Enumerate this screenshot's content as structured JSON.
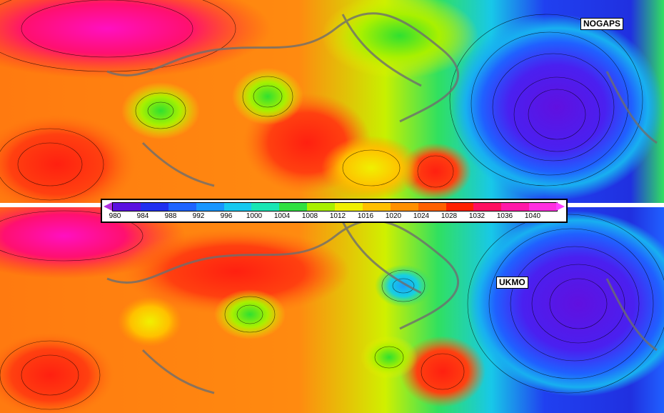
{
  "models": {
    "top": "NOGAPS",
    "bottom": "UKMO"
  },
  "colorbar": {
    "ticks": [
      "980",
      "984",
      "988",
      "992",
      "996",
      "1000",
      "1004",
      "1008",
      "1012",
      "1016",
      "1020",
      "1024",
      "1028",
      "1032",
      "1036",
      "1040"
    ],
    "colors": [
      "#5a10e0",
      "#2030f0",
      "#1e64ff",
      "#1896ff",
      "#16c8f0",
      "#18e6b4",
      "#30e040",
      "#a8f000",
      "#f0f000",
      "#ffc000",
      "#ff9000",
      "#ff6000",
      "#ff2000",
      "#ff1060",
      "#ff18a8",
      "#ff30e0"
    ]
  }
}
